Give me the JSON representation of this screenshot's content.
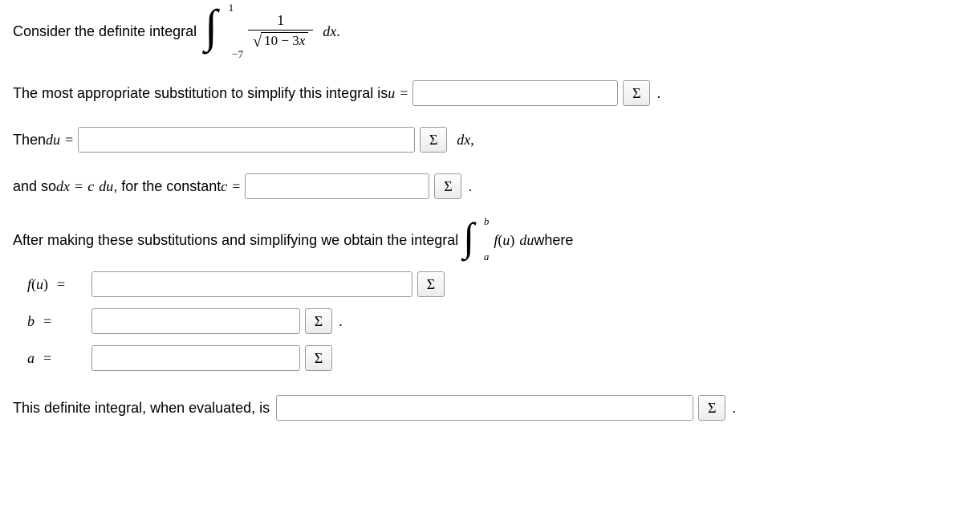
{
  "line1": {
    "lead": "Consider the definite integral",
    "integral": {
      "upper": "1",
      "lower": "−7",
      "numerator": "1",
      "radicand": "10 − 3",
      "radicand_var": "x"
    },
    "trail_math": "dx",
    "period": "."
  },
  "line2": {
    "lead": "The most appropriate substitution to simplify this integral is ",
    "var": "u",
    "eq": "=",
    "input_width": 256,
    "period": "."
  },
  "line3": {
    "lead": "Then ",
    "var": "du",
    "eq": "=",
    "input_width": 420,
    "trail_math": "dx",
    "comma": ","
  },
  "line4": {
    "lead1": "and so ",
    "expr_l": "dx",
    "eq1": "=",
    "expr_r1": "c",
    "expr_r2": "du",
    "lead2": ", for the constant ",
    "var": "c",
    "eq2": "=",
    "input_width": 230,
    "period": "."
  },
  "line5": {
    "lead": "After making these substitutions and simplifying we obtain the integral",
    "integral": {
      "upper": "b",
      "lower": "a"
    },
    "integrand_f": "f",
    "integrand_paren_l": "(",
    "integrand_var": "u",
    "integrand_paren_r": ")",
    "du": "du",
    "trail": " where"
  },
  "line6": {
    "label_f": "f",
    "label_paren_l": "(",
    "label_var": "u",
    "label_paren_r": ")",
    "eq": "=",
    "input_width": 400
  },
  "line7": {
    "label": "b",
    "eq": "=",
    "input_width": 260,
    "period": "."
  },
  "line8": {
    "label": "a",
    "eq": "=",
    "input_width": 260
  },
  "line9": {
    "lead": "This definite integral, when evaluated, is",
    "input_width": 520,
    "period": "."
  },
  "sigma": "Σ"
}
